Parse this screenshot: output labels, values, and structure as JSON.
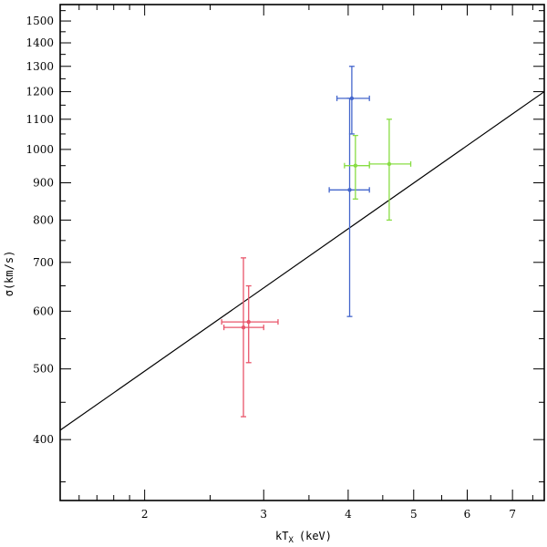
{
  "chart_data": {
    "type": "scatter",
    "x_scale": "log",
    "y_scale": "log",
    "xlim": [
      1.5,
      7.8
    ],
    "ylim": [
      330,
      1580
    ],
    "xlabel_main": "kT",
    "xlabel_sub": "X",
    "xlabel_unit": "(keV)",
    "ylabel": "σ(km/s)",
    "x_ticks_major": [
      2,
      3,
      4,
      5,
      6,
      7
    ],
    "x_tick_labels": [
      "2",
      "3",
      "4",
      "5",
      "6",
      "7"
    ],
    "y_ticks_major": [
      400,
      500,
      600,
      700,
      800,
      900,
      1000,
      1100,
      1200,
      1300,
      1400,
      1500
    ],
    "y_tick_labels": [
      "400",
      "500",
      "600",
      "700",
      "800",
      "900",
      "1000",
      "1100",
      "1200",
      "1300",
      "1400",
      "1500"
    ],
    "fit_line": {
      "x": [
        1.5,
        7.8
      ],
      "y": [
        412,
        1200
      ],
      "color": "#000000"
    },
    "series": [
      {
        "color": "#e8556a",
        "points": [
          {
            "x": 2.85,
            "y": 580,
            "x_lo": 2.6,
            "x_hi": 3.15,
            "y_lo": 510,
            "y_hi": 650
          },
          {
            "x": 2.8,
            "y": 570,
            "x_lo": 2.62,
            "x_hi": 3.0,
            "y_lo": 430,
            "y_hi": 710
          }
        ]
      },
      {
        "color": "#4466cc",
        "points": [
          {
            "x": 4.05,
            "y": 1175,
            "x_lo": 3.85,
            "x_hi": 4.3,
            "y_lo": 1050,
            "y_hi": 1300
          },
          {
            "x": 4.02,
            "y": 880,
            "x_lo": 3.75,
            "x_hi": 4.3,
            "y_lo": 590,
            "y_hi": 1175
          }
        ]
      },
      {
        "color": "#88dd44",
        "points": [
          {
            "x": 4.1,
            "y": 950,
            "x_lo": 3.95,
            "x_hi": 4.3,
            "y_lo": 855,
            "y_hi": 1045
          },
          {
            "x": 4.6,
            "y": 955,
            "x_lo": 4.3,
            "x_hi": 4.95,
            "y_lo": 800,
            "y_hi": 1100
          }
        ]
      }
    ]
  }
}
